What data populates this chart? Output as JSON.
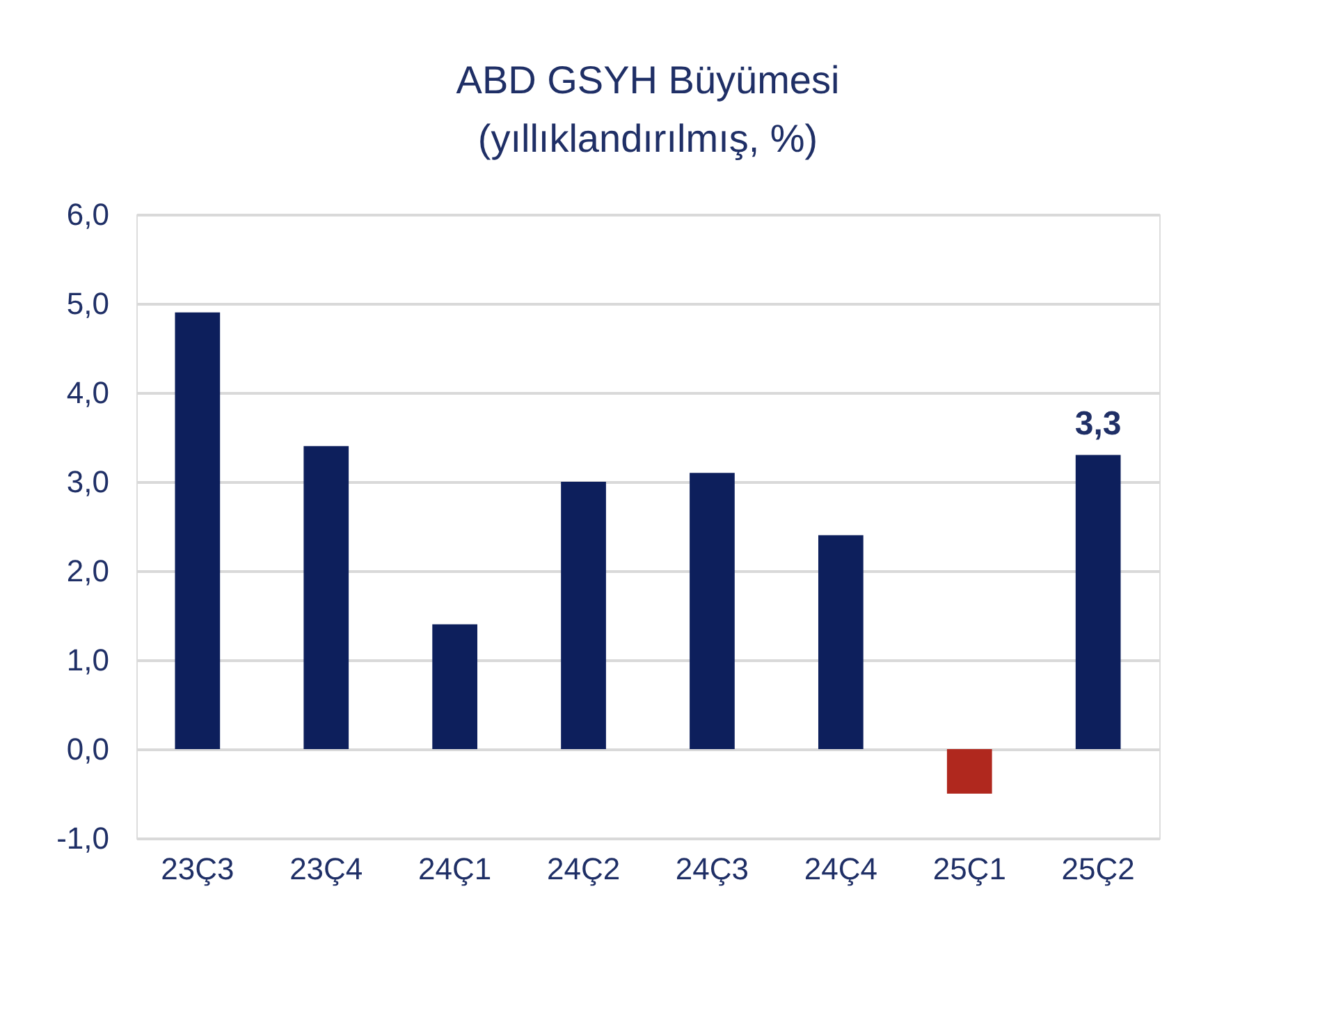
{
  "chart_data": {
    "type": "bar",
    "title": "ABD GSYH Büyümesi",
    "subtitle": "(yıllıklandırılmış, %)",
    "categories": [
      "23Ç3",
      "23Ç4",
      "24Ç1",
      "24Ç2",
      "24Ç3",
      "24Ç4",
      "25Ç1",
      "25Ç2"
    ],
    "values": [
      4.9,
      3.4,
      1.4,
      3.0,
      3.1,
      2.4,
      -0.5,
      3.3
    ],
    "colors": [
      "#0d1f5c",
      "#0d1f5c",
      "#0d1f5c",
      "#0d1f5c",
      "#0d1f5c",
      "#0d1f5c",
      "#b0281e",
      "#0d1f5c"
    ],
    "value_labels": [
      null,
      null,
      null,
      null,
      null,
      null,
      null,
      "3,3"
    ],
    "ylim": [
      -1,
      6
    ],
    "yticks": [
      {
        "value": -1,
        "label": "-1,0"
      },
      {
        "value": 0,
        "label": "0,0"
      },
      {
        "value": 1,
        "label": "1,0"
      },
      {
        "value": 2,
        "label": "2,0"
      },
      {
        "value": 3,
        "label": "3,0"
      },
      {
        "value": 4,
        "label": "4,0"
      },
      {
        "value": 5,
        "label": "5,0"
      },
      {
        "value": 6,
        "label": "6,0"
      }
    ],
    "grid": "y"
  }
}
